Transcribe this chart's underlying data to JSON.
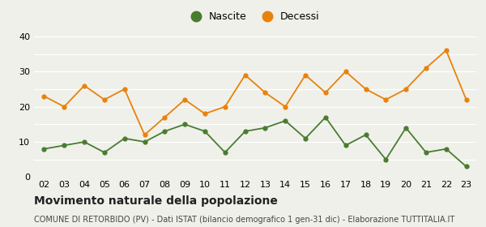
{
  "years": [
    "02",
    "03",
    "04",
    "05",
    "06",
    "07",
    "08",
    "09",
    "10",
    "11",
    "12",
    "13",
    "14",
    "15",
    "16",
    "17",
    "18",
    "19",
    "20",
    "21",
    "22",
    "23"
  ],
  "nascite": [
    8,
    9,
    10,
    7,
    11,
    10,
    13,
    15,
    13,
    7,
    13,
    14,
    16,
    11,
    17,
    9,
    12,
    5,
    14,
    7,
    8,
    3
  ],
  "decessi": [
    23,
    20,
    26,
    22,
    25,
    12,
    17,
    22,
    18,
    20,
    29,
    24,
    20,
    29,
    24,
    30,
    25,
    22,
    25,
    31,
    36,
    22
  ],
  "nascite_color": "#4a7c2f",
  "decessi_color": "#e8820c",
  "background_color": "#f0f0eb",
  "ylim": [
    0,
    40
  ],
  "title": "Movimento naturale della popolazione",
  "subtitle": "COMUNE DI RETORBIDO (PV) - Dati ISTAT (bilancio demografico 1 gen-31 dic) - Elaborazione TUTTITALIA.IT",
  "legend_nascite": "Nascite",
  "legend_decessi": "Decessi",
  "title_fontsize": 10,
  "subtitle_fontsize": 7,
  "axis_fontsize": 8,
  "legend_fontsize": 9
}
